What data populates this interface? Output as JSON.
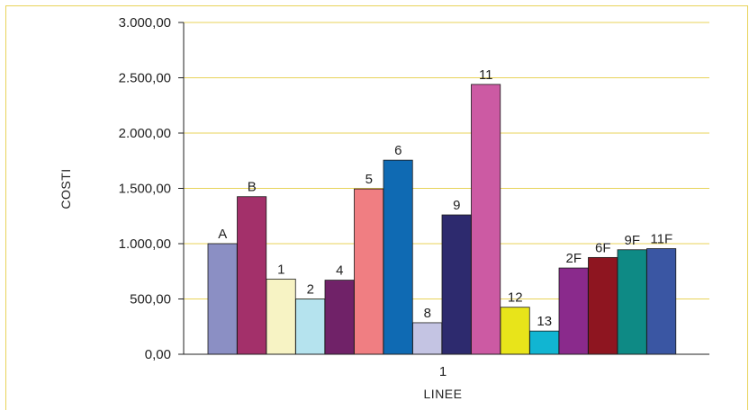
{
  "chart_data": {
    "type": "bar",
    "xlabel": "LINEE",
    "ylabel": "COSTI",
    "x_tick": "1",
    "ylim": [
      0,
      3000
    ],
    "y_ticks": [
      "0,00",
      "500,00",
      "1.000,00",
      "1.500,00",
      "2.000,00",
      "2.500,00",
      "3.000,00"
    ],
    "grid": true,
    "legend": "none",
    "series": [
      {
        "name": "A",
        "value": 1000,
        "color": "#8b8fc4"
      },
      {
        "name": "B",
        "value": 1425,
        "color": "#a3306a"
      },
      {
        "name": "1",
        "value": 680,
        "color": "#f7f3c4"
      },
      {
        "name": "2",
        "value": 500,
        "color": "#b5e3ee"
      },
      {
        "name": "4",
        "value": 670,
        "color": "#702268"
      },
      {
        "name": "5",
        "value": 1495,
        "color": "#f07e82"
      },
      {
        "name": "6",
        "value": 1755,
        "color": "#0f6ab3"
      },
      {
        "name": "8",
        "value": 285,
        "color": "#c4c4e3"
      },
      {
        "name": "9",
        "value": 1260,
        "color": "#2d2a6e"
      },
      {
        "name": "11",
        "value": 2440,
        "color": "#cc5aa3"
      },
      {
        "name": "12",
        "value": 425,
        "color": "#e8e41a"
      },
      {
        "name": "13",
        "value": 210,
        "color": "#11b5d2"
      },
      {
        "name": "2F",
        "value": 780,
        "color": "#8a2a8c"
      },
      {
        "name": "6F",
        "value": 875,
        "color": "#8e1520"
      },
      {
        "name": "9F",
        "value": 945,
        "color": "#0e8a85"
      },
      {
        "name": "11F",
        "value": 955,
        "color": "#3a56a3"
      }
    ],
    "colors": {
      "gridline": "#e8d35a",
      "axis": "#222222",
      "frame": "#e8d35a"
    }
  }
}
